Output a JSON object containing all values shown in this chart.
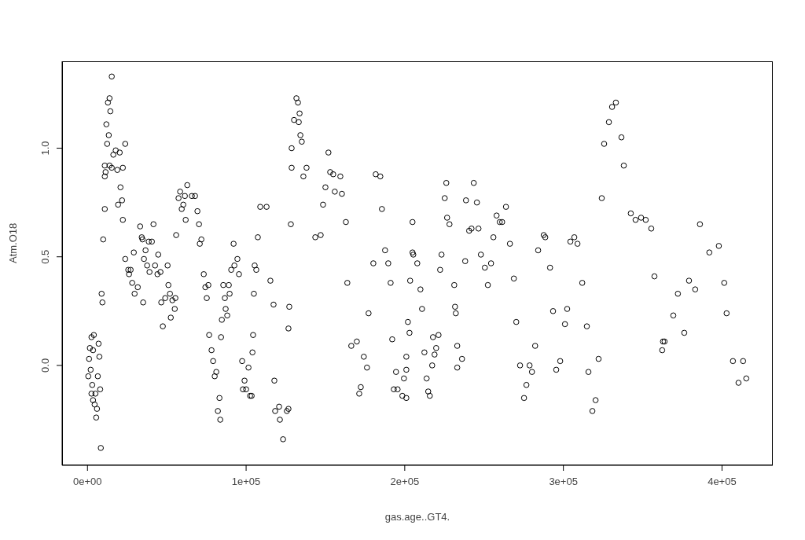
{
  "chart_data": {
    "type": "scatter",
    "xlabel": "gas.age..GT4.",
    "ylabel": "Atm.O18",
    "xlim": [
      -16000,
      432000
    ],
    "ylim": [
      -0.46,
      1.4
    ],
    "xticks": [
      {
        "value": 0,
        "label": "0e+00"
      },
      {
        "value": 100000,
        "label": "1e+05"
      },
      {
        "value": 200000,
        "label": "2e+05"
      },
      {
        "value": 300000,
        "label": "3e+05"
      },
      {
        "value": 400000,
        "label": "4e+05"
      }
    ],
    "yticks": [
      {
        "value": 0,
        "label": "0.0"
      },
      {
        "value": 0.5,
        "label": "0.5"
      },
      {
        "value": 1,
        "label": "1.0"
      }
    ],
    "grid": false,
    "marker": "circle",
    "legend": false,
    "series": [
      {
        "color": "#000000",
        "x": [
          500,
          1000,
          1500,
          2000,
          2500,
          3500,
          4000,
          3000,
          2500,
          3500,
          4500,
          5000,
          6000,
          5500,
          6500,
          7000,
          7500,
          8000,
          8400,
          8900,
          9400,
          9900,
          10900,
          10900,
          10900,
          11400,
          11900,
          12400,
          12900,
          13900,
          13400,
          14400,
          15300,
          13900,
          15300,
          16300,
          17800,
          18800,
          20300,
          20800,
          19300,
          21800,
          22300,
          23800,
          22300,
          23800,
          25700,
          26200,
          27200,
          28200,
          29200,
          29700,
          31700,
          33200,
          34200,
          34700,
          35100,
          35600,
          36600,
          37600,
          38600,
          39100,
          40600,
          41600,
          42600,
          44100,
          44600,
          46000,
          46500,
          47500,
          49000,
          50500,
          51000,
          52000,
          52500,
          53500,
          55000,
          55400,
          55900,
          57400,
          58400,
          59400,
          60400,
          61400,
          61900,
          62900,
          65800,
          67800,
          69300,
          70300,
          70800,
          71800,
          73300,
          74300,
          75200,
          76200,
          76700,
          78200,
          79200,
          80200,
          81200,
          82200,
          83200,
          83700,
          84200,
          84700,
          85600,
          86600,
          87100,
          88100,
          89100,
          89600,
          90600,
          92100,
          92600,
          94500,
          95500,
          97500,
          98000,
          99000,
          100000,
          101500,
          102500,
          103500,
          104000,
          104400,
          104900,
          105400,
          106400,
          107400,
          108900,
          112900,
          115300,
          117300,
          117800,
          118300,
          120800,
          121300,
          123300,
          125700,
          126700,
          126700,
          127200,
          128200,
          128700,
          128700,
          130200,
          131700,
          132700,
          133200,
          133700,
          134200,
          135100,
          136100,
          138100,
          151900,
          153000,
          154900,
          159400,
          181700,
          184600,
          150000,
          155900,
          160400,
          148500,
          185600,
          162900,
          204900,
          143600,
          147000,
          187600,
          204900,
          205400,
          180200,
          189600,
          207900,
          163800,
          191100,
          203400,
          209900,
          210900,
          177200,
          202000,
          203000,
          169800,
          166300,
          192100,
          212400,
          174200,
          201000,
          176200,
          194500,
          201000,
          199500,
          172300,
          171300,
          193100,
          195500,
          198500,
          201000,
          226200,
          243500,
          225200,
          238600,
          245500,
          263800,
          257900,
          259900,
          261400,
          226700,
          228200,
          240600,
          242100,
          246500,
          255900,
          266300,
          287600,
          284100,
          223200,
          248000,
          238100,
          254400,
          250500,
          222300,
          268800,
          231200,
          252400,
          231700,
          232200,
          270300,
          217800,
          221300,
          219800,
          218800,
          233100,
          282200,
          236100,
          217300,
          233100,
          272700,
          278700,
          280200,
          213800,
          276700,
          214800,
          215800,
          275200,
          333100,
          330700,
          328700,
          336600,
          325700,
          338100,
          324200,
          342500,
          345500,
          349000,
          351900,
          355400,
          288600,
          304400,
          306900,
          308900,
          291600,
          311900,
          357400,
          293500,
          302400,
          301000,
          314800,
          362800,
          362300,
          298000,
          295500,
          322200,
          315800,
          320300,
          318300,
          386100,
          398000,
          392000,
          379200,
          383100,
          401400,
          372200,
          369300,
          402900,
          376200,
          363800,
          406900,
          413300,
          410400,
          415300
        ],
        "values": [
          -0.05,
          0.03,
          0.08,
          -0.02,
          0.13,
          0.07,
          0.14,
          -0.09,
          -0.13,
          -0.16,
          -0.18,
          -0.13,
          -0.2,
          -0.24,
          -0.05,
          0.1,
          0.04,
          -0.11,
          -0.38,
          0.33,
          0.29,
          0.58,
          0.72,
          0.87,
          0.92,
          0.89,
          1.11,
          1.02,
          1.21,
          1.23,
          1.06,
          1.17,
          1.33,
          0.92,
          0.91,
          0.97,
          0.99,
          0.9,
          0.98,
          0.82,
          0.74,
          0.76,
          0.67,
          1.02,
          0.91,
          0.49,
          0.44,
          0.42,
          0.44,
          0.38,
          0.52,
          0.33,
          0.36,
          0.64,
          0.59,
          0.58,
          0.29,
          0.49,
          0.53,
          0.46,
          0.57,
          0.43,
          0.57,
          0.65,
          0.46,
          0.42,
          0.51,
          0.43,
          0.29,
          0.18,
          0.31,
          0.46,
          0.37,
          0.33,
          0.22,
          0.3,
          0.26,
          0.31,
          0.6,
          0.77,
          0.8,
          0.72,
          0.74,
          0.78,
          0.67,
          0.83,
          0.78,
          0.78,
          0.71,
          0.65,
          0.56,
          0.58,
          0.42,
          0.36,
          0.31,
          0.37,
          0.14,
          0.07,
          0.02,
          -0.05,
          -0.03,
          -0.21,
          -0.15,
          -0.25,
          0.13,
          0.21,
          0.37,
          0.31,
          0.26,
          0.23,
          0.37,
          0.33,
          0.44,
          0.56,
          0.46,
          0.49,
          0.42,
          0.02,
          -0.11,
          -0.07,
          -0.11,
          -0.01,
          -0.14,
          -0.14,
          0.06,
          0.14,
          0.33,
          0.46,
          0.44,
          0.59,
          0.73,
          0.73,
          0.39,
          0.28,
          -0.07,
          -0.21,
          -0.19,
          -0.25,
          -0.34,
          -0.21,
          -0.2,
          0.17,
          0.27,
          0.65,
          1.0,
          0.91,
          1.13,
          1.23,
          1.21,
          1.12,
          1.16,
          1.06,
          1.03,
          0.87,
          0.91,
          0.98,
          0.89,
          0.88,
          0.87,
          0.88,
          0.87,
          0.82,
          0.8,
          0.79,
          0.74,
          0.72,
          0.66,
          0.66,
          0.59,
          0.6,
          0.53,
          0.52,
          0.51,
          0.47,
          0.47,
          0.47,
          0.38,
          0.38,
          0.39,
          0.35,
          0.26,
          0.24,
          0.2,
          0.15,
          0.11,
          0.09,
          0.12,
          0.06,
          0.04,
          0.04,
          -0.01,
          -0.03,
          -0.02,
          -0.06,
          -0.1,
          -0.13,
          -0.11,
          -0.11,
          -0.14,
          -0.15,
          0.84,
          0.84,
          0.77,
          0.76,
          0.75,
          0.73,
          0.69,
          0.66,
          0.66,
          0.68,
          0.65,
          0.62,
          0.63,
          0.63,
          0.59,
          0.56,
          0.6,
          0.53,
          0.51,
          0.51,
          0.48,
          0.47,
          0.45,
          0.44,
          0.4,
          0.37,
          0.37,
          0.27,
          0.24,
          0.2,
          0.13,
          0.14,
          0.08,
          0.05,
          0.09,
          0.09,
          0.03,
          0.0,
          -0.01,
          0.0,
          0.0,
          -0.03,
          -0.06,
          -0.09,
          -0.12,
          -0.14,
          -0.15,
          1.21,
          1.19,
          1.12,
          1.05,
          1.02,
          0.92,
          0.77,
          0.7,
          0.67,
          0.68,
          0.67,
          0.63,
          0.59,
          0.57,
          0.59,
          0.56,
          0.45,
          0.38,
          0.41,
          0.25,
          0.26,
          0.19,
          0.18,
          0.11,
          0.07,
          0.02,
          -0.02,
          0.03,
          -0.03,
          -0.16,
          -0.21,
          0.65,
          0.55,
          0.52,
          0.39,
          0.35,
          0.38,
          0.33,
          0.23,
          0.24,
          0.15,
          0.11,
          0.02,
          0.02,
          -0.08,
          -0.06
        ]
      }
    ]
  }
}
